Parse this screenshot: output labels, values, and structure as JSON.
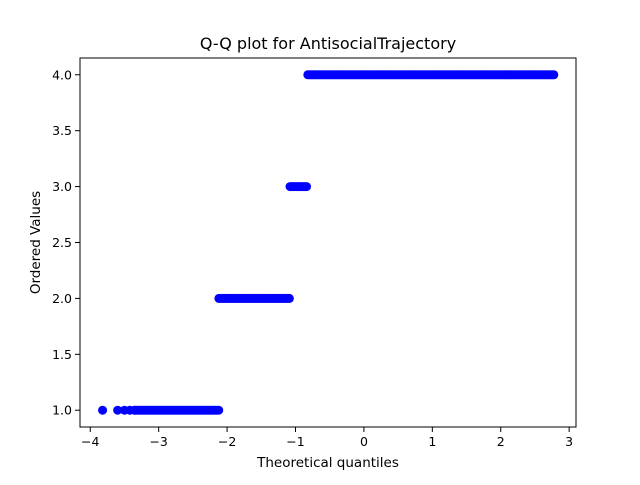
{
  "chart_data": {
    "type": "scatter",
    "title": "Q-Q plot for AntisocialTrajectory",
    "xlabel": "Theoretical quantiles",
    "ylabel": "Ordered Values",
    "xlim": [
      -4.15,
      3.1
    ],
    "ylim": [
      0.85,
      4.15
    ],
    "xticks": [
      -4,
      -3,
      -2,
      -1,
      0,
      1,
      2,
      3
    ],
    "yticks": [
      1.0,
      1.5,
      2.0,
      2.5,
      3.0,
      3.5,
      4.0
    ],
    "xtick_labels": [
      "−4",
      "−3",
      "−2",
      "−1",
      "0",
      "1",
      "2",
      "3"
    ],
    "ytick_labels": [
      "1.0",
      "1.5",
      "2.0",
      "2.5",
      "3.0",
      "3.5",
      "4.0"
    ],
    "grid": false,
    "marker_color": "#0000ff",
    "groups": [
      {
        "y": 1.0,
        "x_min": -3.82,
        "x_max": -2.12,
        "isolated_x": [
          -3.82,
          -3.6,
          -3.5,
          -3.42,
          -3.35
        ]
      },
      {
        "y": 2.0,
        "x_min": -2.12,
        "x_max": -1.08,
        "isolated_x": []
      },
      {
        "y": 3.0,
        "x_min": -1.08,
        "x_max": -0.82,
        "isolated_x": []
      },
      {
        "y": 4.0,
        "x_min": -0.82,
        "x_max": 2.78,
        "isolated_x": []
      }
    ]
  }
}
